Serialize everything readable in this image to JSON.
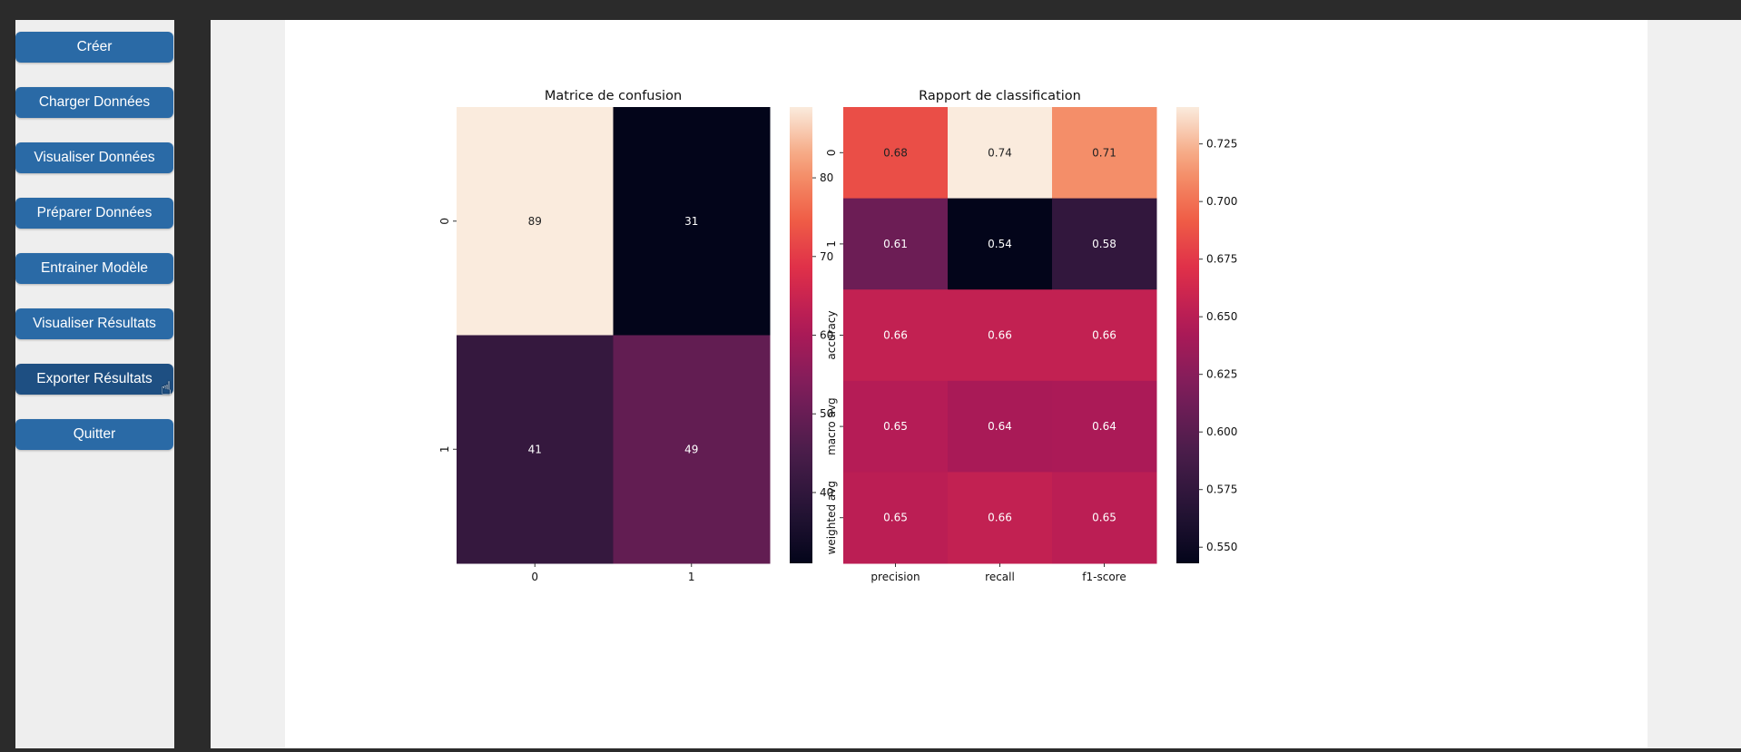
{
  "sidebar": {
    "buttons": [
      {
        "label": "Créer",
        "active": false
      },
      {
        "label": "Charger Données",
        "active": false
      },
      {
        "label": "Visualiser Données",
        "active": false
      },
      {
        "label": "Préparer Données",
        "active": false
      },
      {
        "label": "Entrainer Modèle",
        "active": false
      },
      {
        "label": "Visualiser Résultats",
        "active": false
      },
      {
        "label": "Exporter Résultats",
        "active": true
      },
      {
        "label": "Quitter",
        "active": false
      }
    ]
  },
  "chart_data": [
    {
      "type": "heatmap",
      "title": "Matrice de confusion",
      "x_labels": [
        "0",
        "1"
      ],
      "y_labels": [
        "0",
        "1"
      ],
      "values": [
        [
          89,
          31
        ],
        [
          41,
          49
        ]
      ],
      "value_format": "integer",
      "colorbar": {
        "range": [
          31,
          89
        ],
        "ticks": [
          40,
          50,
          60,
          70,
          80
        ],
        "tick_labels": [
          "40",
          "50",
          "60",
          "70",
          "80"
        ]
      },
      "colormap": "rocket"
    },
    {
      "type": "heatmap",
      "title": "Rapport de classification",
      "x_labels": [
        "precision",
        "recall",
        "f1-score"
      ],
      "y_labels": [
        "0",
        "1",
        "accuracy",
        "macro avg",
        "weighted avg"
      ],
      "values": [
        [
          0.68,
          0.74,
          0.71
        ],
        [
          0.61,
          0.54,
          0.58
        ],
        [
          0.66,
          0.66,
          0.66
        ],
        [
          0.65,
          0.64,
          0.64
        ],
        [
          0.65,
          0.66,
          0.65
        ]
      ],
      "color_values": [
        [
          0.685,
          0.741,
          0.711
        ],
        [
          0.61,
          0.543,
          0.575
        ],
        [
          0.655,
          0.655,
          0.655
        ],
        [
          0.648,
          0.642,
          0.643
        ],
        [
          0.651,
          0.655,
          0.651
        ]
      ],
      "value_format": "2dp",
      "colorbar": {
        "range": [
          0.543,
          0.741
        ],
        "ticks": [
          0.55,
          0.575,
          0.6,
          0.625,
          0.65,
          0.675,
          0.7,
          0.725
        ],
        "tick_labels": [
          "0.550",
          "0.575",
          "0.600",
          "0.625",
          "0.650",
          "0.675",
          "0.700",
          "0.725"
        ]
      },
      "colormap": "rocket"
    }
  ]
}
